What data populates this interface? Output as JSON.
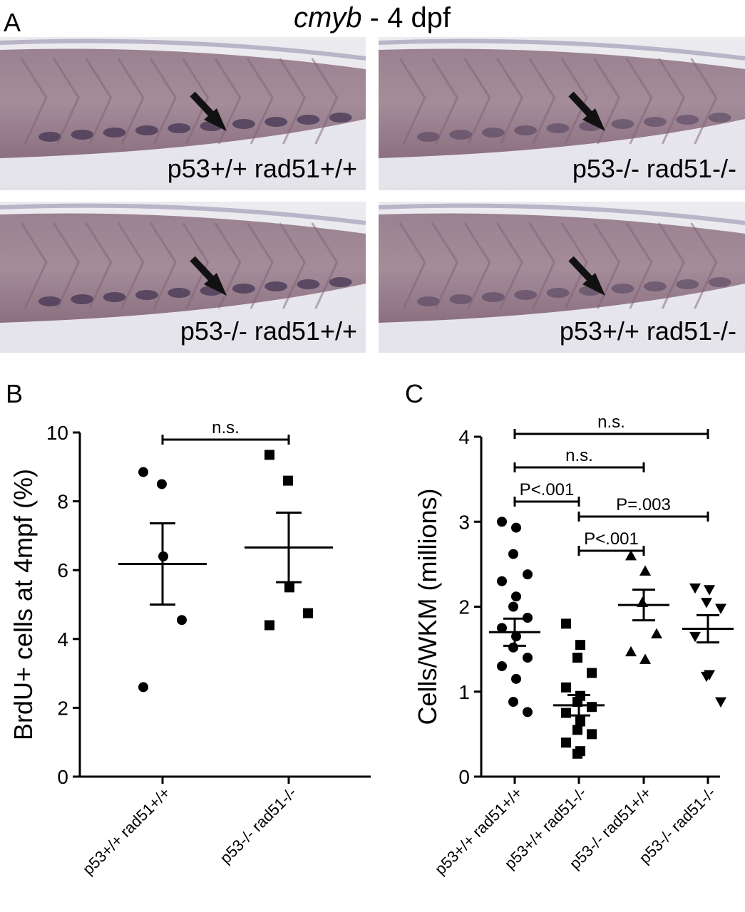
{
  "panel_a": {
    "label": "A",
    "title_italic": "cmyb",
    "title_rest": " - 4 dpf",
    "images": [
      {
        "label": "p53+/+ rad51+/+"
      },
      {
        "label": "p53-/- rad51-/-"
      },
      {
        "label": "p53-/- rad51+/+"
      },
      {
        "label": "p53+/+ rad51-/-"
      }
    ]
  },
  "chart_data": [
    {
      "type": "dot",
      "panel_label": "B",
      "ylabel": "BrdU+ cells at 4mpf (%)",
      "categories": [
        "p53+/+ rad51+/+",
        "p53-/- rad51-/-"
      ],
      "values": [
        [
          8.85,
          8.5,
          6.4,
          4.55,
          2.6
        ],
        [
          9.35,
          8.6,
          5.5,
          4.75,
          4.4
        ]
      ],
      "means": [
        6.18,
        6.66
      ],
      "errors": [
        1.18,
        1.01
      ],
      "markers": [
        "circle",
        "square"
      ],
      "color": "#000000",
      "ylim": [
        0,
        10
      ],
      "yticks": [
        0,
        2,
        4,
        6,
        8,
        10
      ],
      "comparisons": [
        {
          "groups": [
            0,
            1
          ],
          "label": "n.s."
        }
      ]
    },
    {
      "type": "dot",
      "panel_label": "C",
      "ylabel": "Cells/WKM (millions)",
      "categories": [
        "p53+/+ rad51+/+",
        "p53+/+ rad51-/-",
        "p53-/- rad51+/+",
        "p53-/- rad51-/-"
      ],
      "values": [
        [
          3.0,
          2.93,
          2.62,
          2.38,
          2.3,
          2.12,
          2.0,
          1.87,
          1.75,
          1.65,
          1.52,
          1.4,
          1.3,
          1.15,
          0.88,
          0.76
        ],
        [
          1.8,
          1.55,
          1.4,
          1.22,
          1.05,
          0.95,
          0.88,
          0.82,
          0.75,
          0.65,
          0.55,
          0.5,
          0.4,
          0.3,
          0.27
        ],
        [
          2.6,
          2.42,
          2.05,
          1.68,
          1.47,
          1.38
        ],
        [
          2.22,
          2.2,
          2.05,
          1.98,
          1.65,
          1.2,
          1.18,
          0.88
        ]
      ],
      "means": [
        1.7,
        0.84,
        2.02,
        1.74
      ],
      "errors": [
        0.16,
        0.12,
        0.18,
        0.16
      ],
      "markers": [
        "circle",
        "square",
        "triangle-up",
        "triangle-down"
      ],
      "color": "#000000",
      "ylim": [
        0,
        4
      ],
      "yticks": [
        0,
        1,
        2,
        3,
        4
      ],
      "comparisons": [
        {
          "groups": [
            0,
            3
          ],
          "label": "n.s."
        },
        {
          "groups": [
            0,
            2
          ],
          "label": "n.s."
        },
        {
          "groups": [
            0,
            1
          ],
          "label": "P<.001"
        },
        {
          "groups": [
            1,
            3
          ],
          "label": "P=.003"
        },
        {
          "groups": [
            1,
            2
          ],
          "label": "P<.001"
        }
      ]
    }
  ]
}
